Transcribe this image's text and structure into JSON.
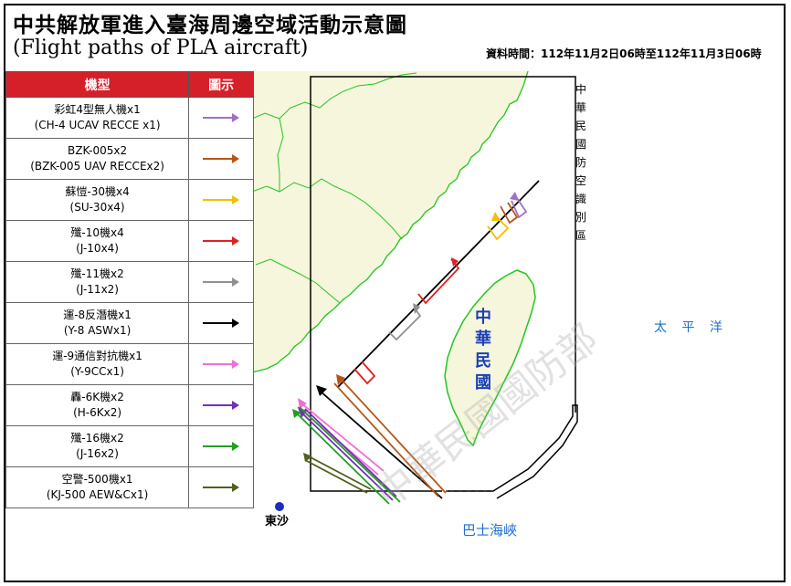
{
  "title_zh": "中共解放軍進入臺海周邊空域活動示意圖",
  "title_en": "(Flight paths of PLA aircraft)",
  "data_time": "資料時間：112年11月2日06時至112年11月3日06時",
  "legend": {
    "header_type": "機型",
    "header_icon": "圖示",
    "items": [
      {
        "zh": "彩虹4型無人機x1",
        "en": "(CH-4 UCAV RECCE x1)",
        "color": "#a070c8"
      },
      {
        "zh": "BZK-005x2",
        "en": "(BZK-005 UAV RECCEx2)",
        "color": "#b85418"
      },
      {
        "zh": "蘇愷-30機x4",
        "en": "(SU-30x4)",
        "color": "#f0c000"
      },
      {
        "zh": "殲-10機x4",
        "en": "(J-10x4)",
        "color": "#e02020"
      },
      {
        "zh": "殲-11機x2",
        "en": "(J-11x2)",
        "color": "#909090"
      },
      {
        "zh": "運-8反潛機x1",
        "en": "(Y-8 ASWx1)",
        "color": "#000000"
      },
      {
        "zh": "運-9通信對抗機x1",
        "en": "(Y-9CCx1)",
        "color": "#f070d0"
      },
      {
        "zh": "轟-6K機x2",
        "en": "(H-6Kx2)",
        "color": "#7030b8"
      },
      {
        "zh": "殲-16機x2",
        "en": "(J-16x2)",
        "color": "#20a020"
      },
      {
        "zh": "空警-500機x1",
        "en": "(KJ-500 AEW&Cx1)",
        "color": "#506020"
      }
    ]
  },
  "map": {
    "adiz_label": "中華民國防空識別區",
    "taiwan_label": "中華民國",
    "pacific_label": "太 平 洋",
    "bashi_label": "巴士海峽",
    "dongsha_label": "東沙",
    "watermark": "中華民國國防部",
    "land_color": "#f6f6dc",
    "coast_color": "#22c522",
    "dongsha_color": "#1a2fb8"
  }
}
